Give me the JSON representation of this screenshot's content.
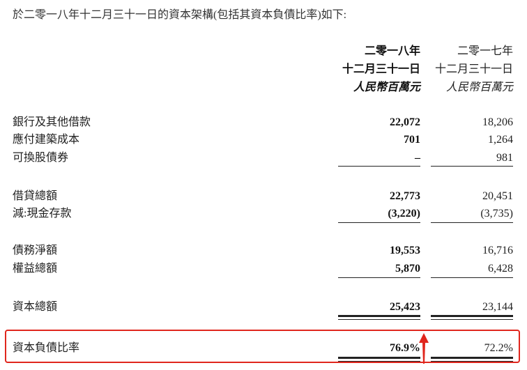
{
  "intro": "於二零一八年十二月三十一日的資本架構(包括其資本負債比率)如下:",
  "columns": [
    {
      "year": "二零一八年",
      "date": "十二月三十一日",
      "unit": "人民幣百萬元"
    },
    {
      "year": "二零一七年",
      "date": "十二月三十一日",
      "unit": "人民幣百萬元"
    }
  ],
  "rows": [
    {
      "label": "銀行及其他借款",
      "v2018": "22,072",
      "v2017": "18,206"
    },
    {
      "label": "應付建築成本",
      "v2018": "701",
      "v2017": "1,264"
    },
    {
      "label": "可換股債券",
      "v2018": "–",
      "v2017": "981"
    },
    {
      "label": "借貸總額",
      "v2018": "22,773",
      "v2017": "20,451"
    },
    {
      "label": "減:現金存款",
      "v2018": "(3,220)",
      "v2017": "(3,735)"
    },
    {
      "label": "債務淨額",
      "v2018": "19,553",
      "v2017": "16,716"
    },
    {
      "label": "權益總額",
      "v2018": "5,870",
      "v2017": "6,428"
    },
    {
      "label": "資本總額",
      "v2018": "25,423",
      "v2017": "23,144"
    },
    {
      "label": "資本負債比率",
      "v2018": "76.9%",
      "v2017": "72.2%"
    }
  ],
  "highlight_color": "#e0261d",
  "annotation_icon": "red-up-arrow-icon"
}
